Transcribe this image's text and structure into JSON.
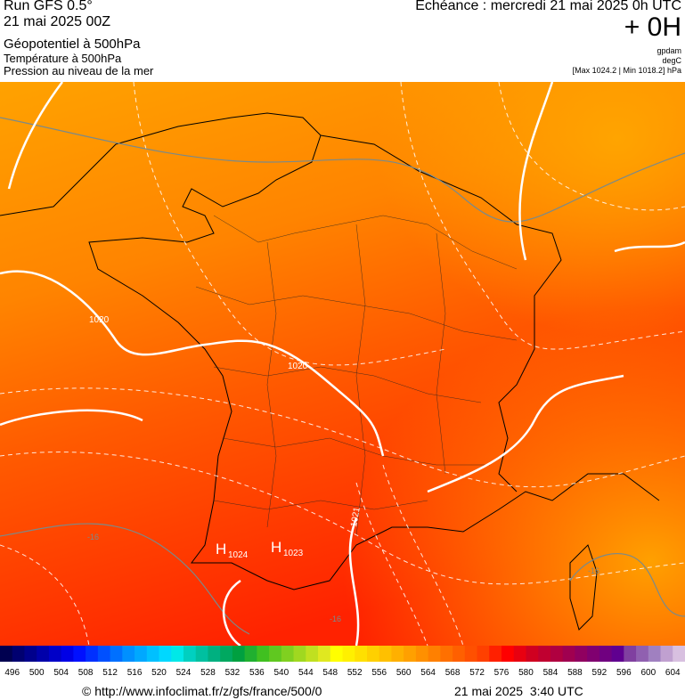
{
  "header": {
    "run": "Run GFS 0.5°",
    "run_date": "21 mai 2025 00Z",
    "layer1": "Géopotentiel à 500hPa",
    "layer2": "Température à 500hPa",
    "layer3": "Pression au niveau de la mer",
    "valid": "Echéance : mercredi 21 mai 2025 0h UTC",
    "lead": "+ 0H",
    "unit1": "gpdam",
    "unit2": "degC",
    "range": "[Max 1024.2 | Min 1018.2] hPa"
  },
  "map": {
    "isobars": [
      "1020",
      "1020",
      "1021"
    ],
    "highs": [
      {
        "symbol": "H",
        "value": "1024"
      },
      {
        "symbol": "H",
        "value": "1023"
      }
    ],
    "isotherms": [
      "-16",
      "-16",
      "-16"
    ]
  },
  "scale": {
    "labels": [
      496,
      500,
      504,
      508,
      512,
      516,
      520,
      524,
      528,
      532,
      536,
      540,
      544,
      548,
      552,
      556,
      560,
      564,
      568,
      572,
      576,
      580,
      584,
      588,
      592,
      596,
      600,
      604
    ],
    "colors": [
      "#000050",
      "#000070",
      "#00008c",
      "#0000aa",
      "#0000c8",
      "#0000e6",
      "#0010ff",
      "#0030ff",
      "#0050ff",
      "#0070ff",
      "#0090ff",
      "#00a8ff",
      "#00c0ff",
      "#00d8ff",
      "#00e8e8",
      "#00d0c0",
      "#00c0a0",
      "#00b080",
      "#00a860",
      "#00a040",
      "#20b030",
      "#40c020",
      "#60c820",
      "#80d020",
      "#a0d820",
      "#c0e020",
      "#e0e820",
      "#ffff00",
      "#fff000",
      "#ffe000",
      "#ffd000",
      "#ffc000",
      "#ffb000",
      "#ffa000",
      "#ff9000",
      "#ff8000",
      "#ff7000",
      "#ff6000",
      "#ff5000",
      "#ff4000",
      "#ff2000",
      "#ff0000",
      "#e80010",
      "#d00020",
      "#c00030",
      "#b00040",
      "#a00050",
      "#900060",
      "#800070",
      "#700080",
      "#600090",
      "#8040a0",
      "#9060b0",
      "#a080c0",
      "#c0a0d0",
      "#d8c0e0"
    ]
  },
  "footer": {
    "url": "© http://www.infoclimat.fr/z/gfs/france/500/0",
    "generated": "21 mai 2025  3:40 UTC"
  }
}
